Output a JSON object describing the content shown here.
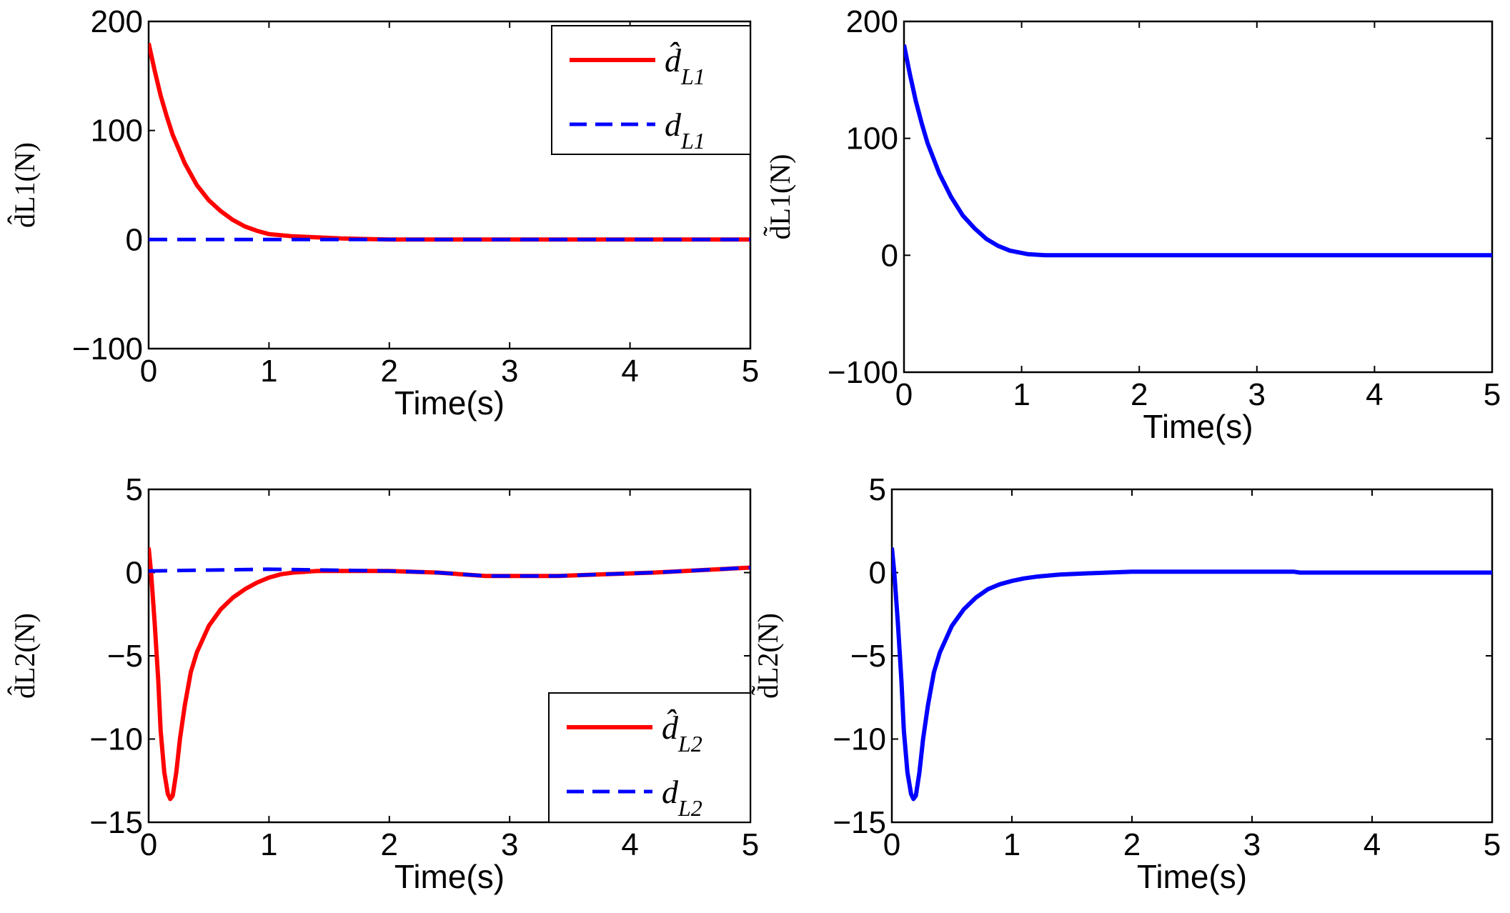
{
  "chart_data": [
    {
      "id": "p1",
      "type": "line",
      "xlabel": "Time(s)",
      "ylabel": "d̂L1(N)",
      "xlim": [
        0,
        5
      ],
      "ylim": [
        -100,
        200
      ],
      "xticks": [
        "0",
        "1",
        "2",
        "3",
        "4",
        "5"
      ],
      "yticks": [
        "−100",
        "0",
        "100",
        "200"
      ],
      "legend": {
        "position": "top-right",
        "entries": [
          "d̂L1",
          "dL1"
        ]
      },
      "series": [
        {
          "name": "d̂L1",
          "color": "#ff0000",
          "style": "solid",
          "x": [
            0,
            0.05,
            0.1,
            0.15,
            0.2,
            0.3,
            0.4,
            0.5,
            0.6,
            0.7,
            0.8,
            0.9,
            1.0,
            1.2,
            1.4,
            1.6,
            2,
            3,
            4,
            5
          ],
          "y": [
            180,
            155,
            132,
            113,
            96,
            70,
            50,
            36,
            26,
            18,
            12,
            8,
            5,
            3,
            2,
            1,
            0,
            0,
            0,
            0
          ]
        },
        {
          "name": "dL1",
          "color": "#0000ff",
          "style": "dashed",
          "x": [
            0,
            5
          ],
          "y": [
            0,
            0
          ]
        }
      ]
    },
    {
      "id": "p2",
      "type": "line",
      "xlabel": "Time(s)",
      "ylabel": "d̃L1(N)",
      "xlim": [
        0,
        5
      ],
      "ylim": [
        -100,
        200
      ],
      "xticks": [
        "0",
        "1",
        "2",
        "3",
        "4",
        "5"
      ],
      "yticks": [
        "−100",
        "0",
        "100",
        "200"
      ],
      "series": [
        {
          "name": "d̃L1",
          "color": "#0000ff",
          "style": "solid",
          "x": [
            0,
            0.05,
            0.1,
            0.15,
            0.2,
            0.3,
            0.4,
            0.5,
            0.6,
            0.7,
            0.8,
            0.9,
            1.0,
            1.05,
            1.2,
            2,
            3,
            4,
            5
          ],
          "y": [
            180,
            155,
            132,
            113,
            96,
            70,
            50,
            34,
            23,
            14,
            8,
            4,
            2,
            1,
            0,
            0,
            0,
            0,
            0
          ]
        }
      ]
    },
    {
      "id": "p3",
      "type": "line",
      "xlabel": "Time(s)",
      "ylabel": "d̂L2(N)",
      "xlim": [
        0,
        5
      ],
      "ylim": [
        -15,
        5
      ],
      "xticks": [
        "0",
        "1",
        "2",
        "3",
        "4",
        "5"
      ],
      "yticks": [
        "−15",
        "−10",
        "−5",
        "0",
        "5"
      ],
      "legend": {
        "position": "bottom-right",
        "entries": [
          "d̂L2",
          "dL2"
        ]
      },
      "series": [
        {
          "name": "d̂L2",
          "color": "#ff0000",
          "style": "solid",
          "x": [
            0,
            0.02,
            0.05,
            0.08,
            0.1,
            0.13,
            0.16,
            0.18,
            0.2,
            0.23,
            0.26,
            0.3,
            0.35,
            0.4,
            0.5,
            0.6,
            0.7,
            0.8,
            0.9,
            1.0,
            1.1,
            1.2,
            1.4,
            1.6,
            1.8,
            2.0,
            2.4,
            2.8,
            3.0,
            3.4,
            3.8,
            4.2,
            4.6,
            5.0
          ],
          "y": [
            1.5,
            0,
            -3,
            -6.5,
            -9.5,
            -12,
            -13.3,
            -13.6,
            -13.4,
            -12,
            -10,
            -8,
            -6,
            -4.8,
            -3.2,
            -2.2,
            -1.5,
            -1.0,
            -0.6,
            -0.3,
            -0.1,
            0.0,
            0.1,
            0.1,
            0.1,
            0.1,
            0.0,
            -0.2,
            -0.2,
            -0.2,
            -0.1,
            0.0,
            0.15,
            0.3
          ]
        },
        {
          "name": "dL2",
          "color": "#0000ff",
          "style": "dashed",
          "x": [
            0,
            0.5,
            1.0,
            1.5,
            2.0,
            2.4,
            2.8,
            3.0,
            3.4,
            3.8,
            4.2,
            4.6,
            5.0
          ],
          "y": [
            0.1,
            0.15,
            0.2,
            0.15,
            0.1,
            0.0,
            -0.2,
            -0.2,
            -0.2,
            -0.1,
            0.0,
            0.15,
            0.3
          ]
        }
      ]
    },
    {
      "id": "p4",
      "type": "line",
      "xlabel": "Time(s)",
      "ylabel": "d̃L2(N)",
      "xlim": [
        0,
        5
      ],
      "ylim": [
        -15,
        5
      ],
      "xticks": [
        "0",
        "1",
        "2",
        "3",
        "4",
        "5"
      ],
      "yticks": [
        "−15",
        "−10",
        "−5",
        "0",
        "5"
      ],
      "series": [
        {
          "name": "d̃L2",
          "color": "#0000ff",
          "style": "solid",
          "x": [
            0,
            0.02,
            0.05,
            0.08,
            0.1,
            0.13,
            0.16,
            0.18,
            0.2,
            0.23,
            0.26,
            0.3,
            0.35,
            0.4,
            0.5,
            0.6,
            0.7,
            0.8,
            0.9,
            1.0,
            1.1,
            1.2,
            1.4,
            1.6,
            1.8,
            2.0,
            3.0,
            3.35,
            3.4,
            4.0,
            5.0
          ],
          "y": [
            1.5,
            0,
            -3,
            -6.5,
            -9.5,
            -12,
            -13.3,
            -13.6,
            -13.4,
            -12,
            -10,
            -8,
            -6,
            -4.8,
            -3.2,
            -2.2,
            -1.5,
            -1.0,
            -0.7,
            -0.5,
            -0.35,
            -0.25,
            -0.12,
            -0.05,
            0.0,
            0.05,
            0.05,
            0.05,
            0.0,
            0.0,
            0.0
          ]
        }
      ]
    }
  ]
}
